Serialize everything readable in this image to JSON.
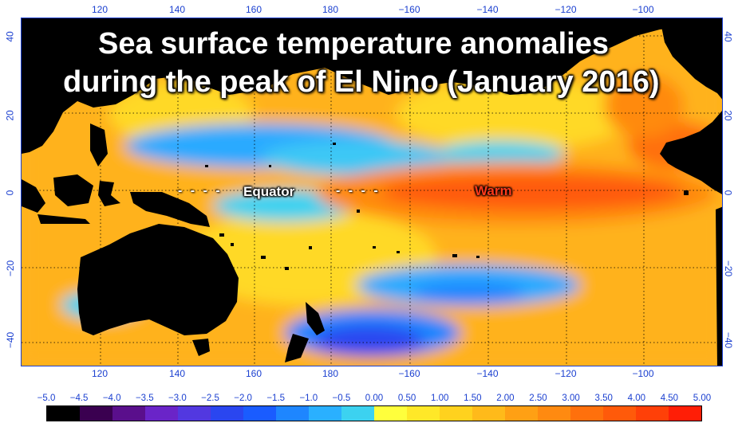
{
  "title": {
    "line1": "Sea surface temperature anomalies",
    "line2": "during the peak of El Nino (January 2016)"
  },
  "labels": {
    "equator": "Equator",
    "equator_dashes": "- - - -",
    "warm": "Warm"
  },
  "axes": {
    "longitude_ticks": [
      "120",
      "140",
      "160",
      "180",
      "−160",
      "−140",
      "−120",
      "−100"
    ],
    "latitude_ticks": [
      "40",
      "20",
      "0",
      "−20",
      "−40"
    ]
  },
  "colorbar": {
    "ticks": [
      "−5.0",
      "−4.5",
      "−4.0",
      "−3.5",
      "−3.0",
      "−2.5",
      "−2.0",
      "−1.5",
      "−1.0",
      "−0.5",
      "0.00",
      "0.50",
      "1.00",
      "1.50",
      "2.00",
      "2.50",
      "3.00",
      "3.50",
      "4.00",
      "4.50",
      "5.00"
    ],
    "colors": [
      "#000000",
      "#3a0050",
      "#5a0f8c",
      "#6a24c8",
      "#5238e0",
      "#2a46f0",
      "#1a5cff",
      "#1e86ff",
      "#2ab0ff",
      "#3cd2f0",
      "#ffff3c",
      "#ffe828",
      "#ffd21e",
      "#ffba1a",
      "#ffa014",
      "#ff8a10",
      "#ff700c",
      "#ff5a0a",
      "#ff4008",
      "#ff1e06"
    ]
  },
  "colors": {
    "land": "#000000",
    "ocean_base": "#ffb21a",
    "warm_anomaly": "#ff5a14",
    "cool_anomaly": "#29aaff",
    "strong_cool": "#2a46f0",
    "grid": "#000000",
    "axis": "#1a3fd0"
  }
}
